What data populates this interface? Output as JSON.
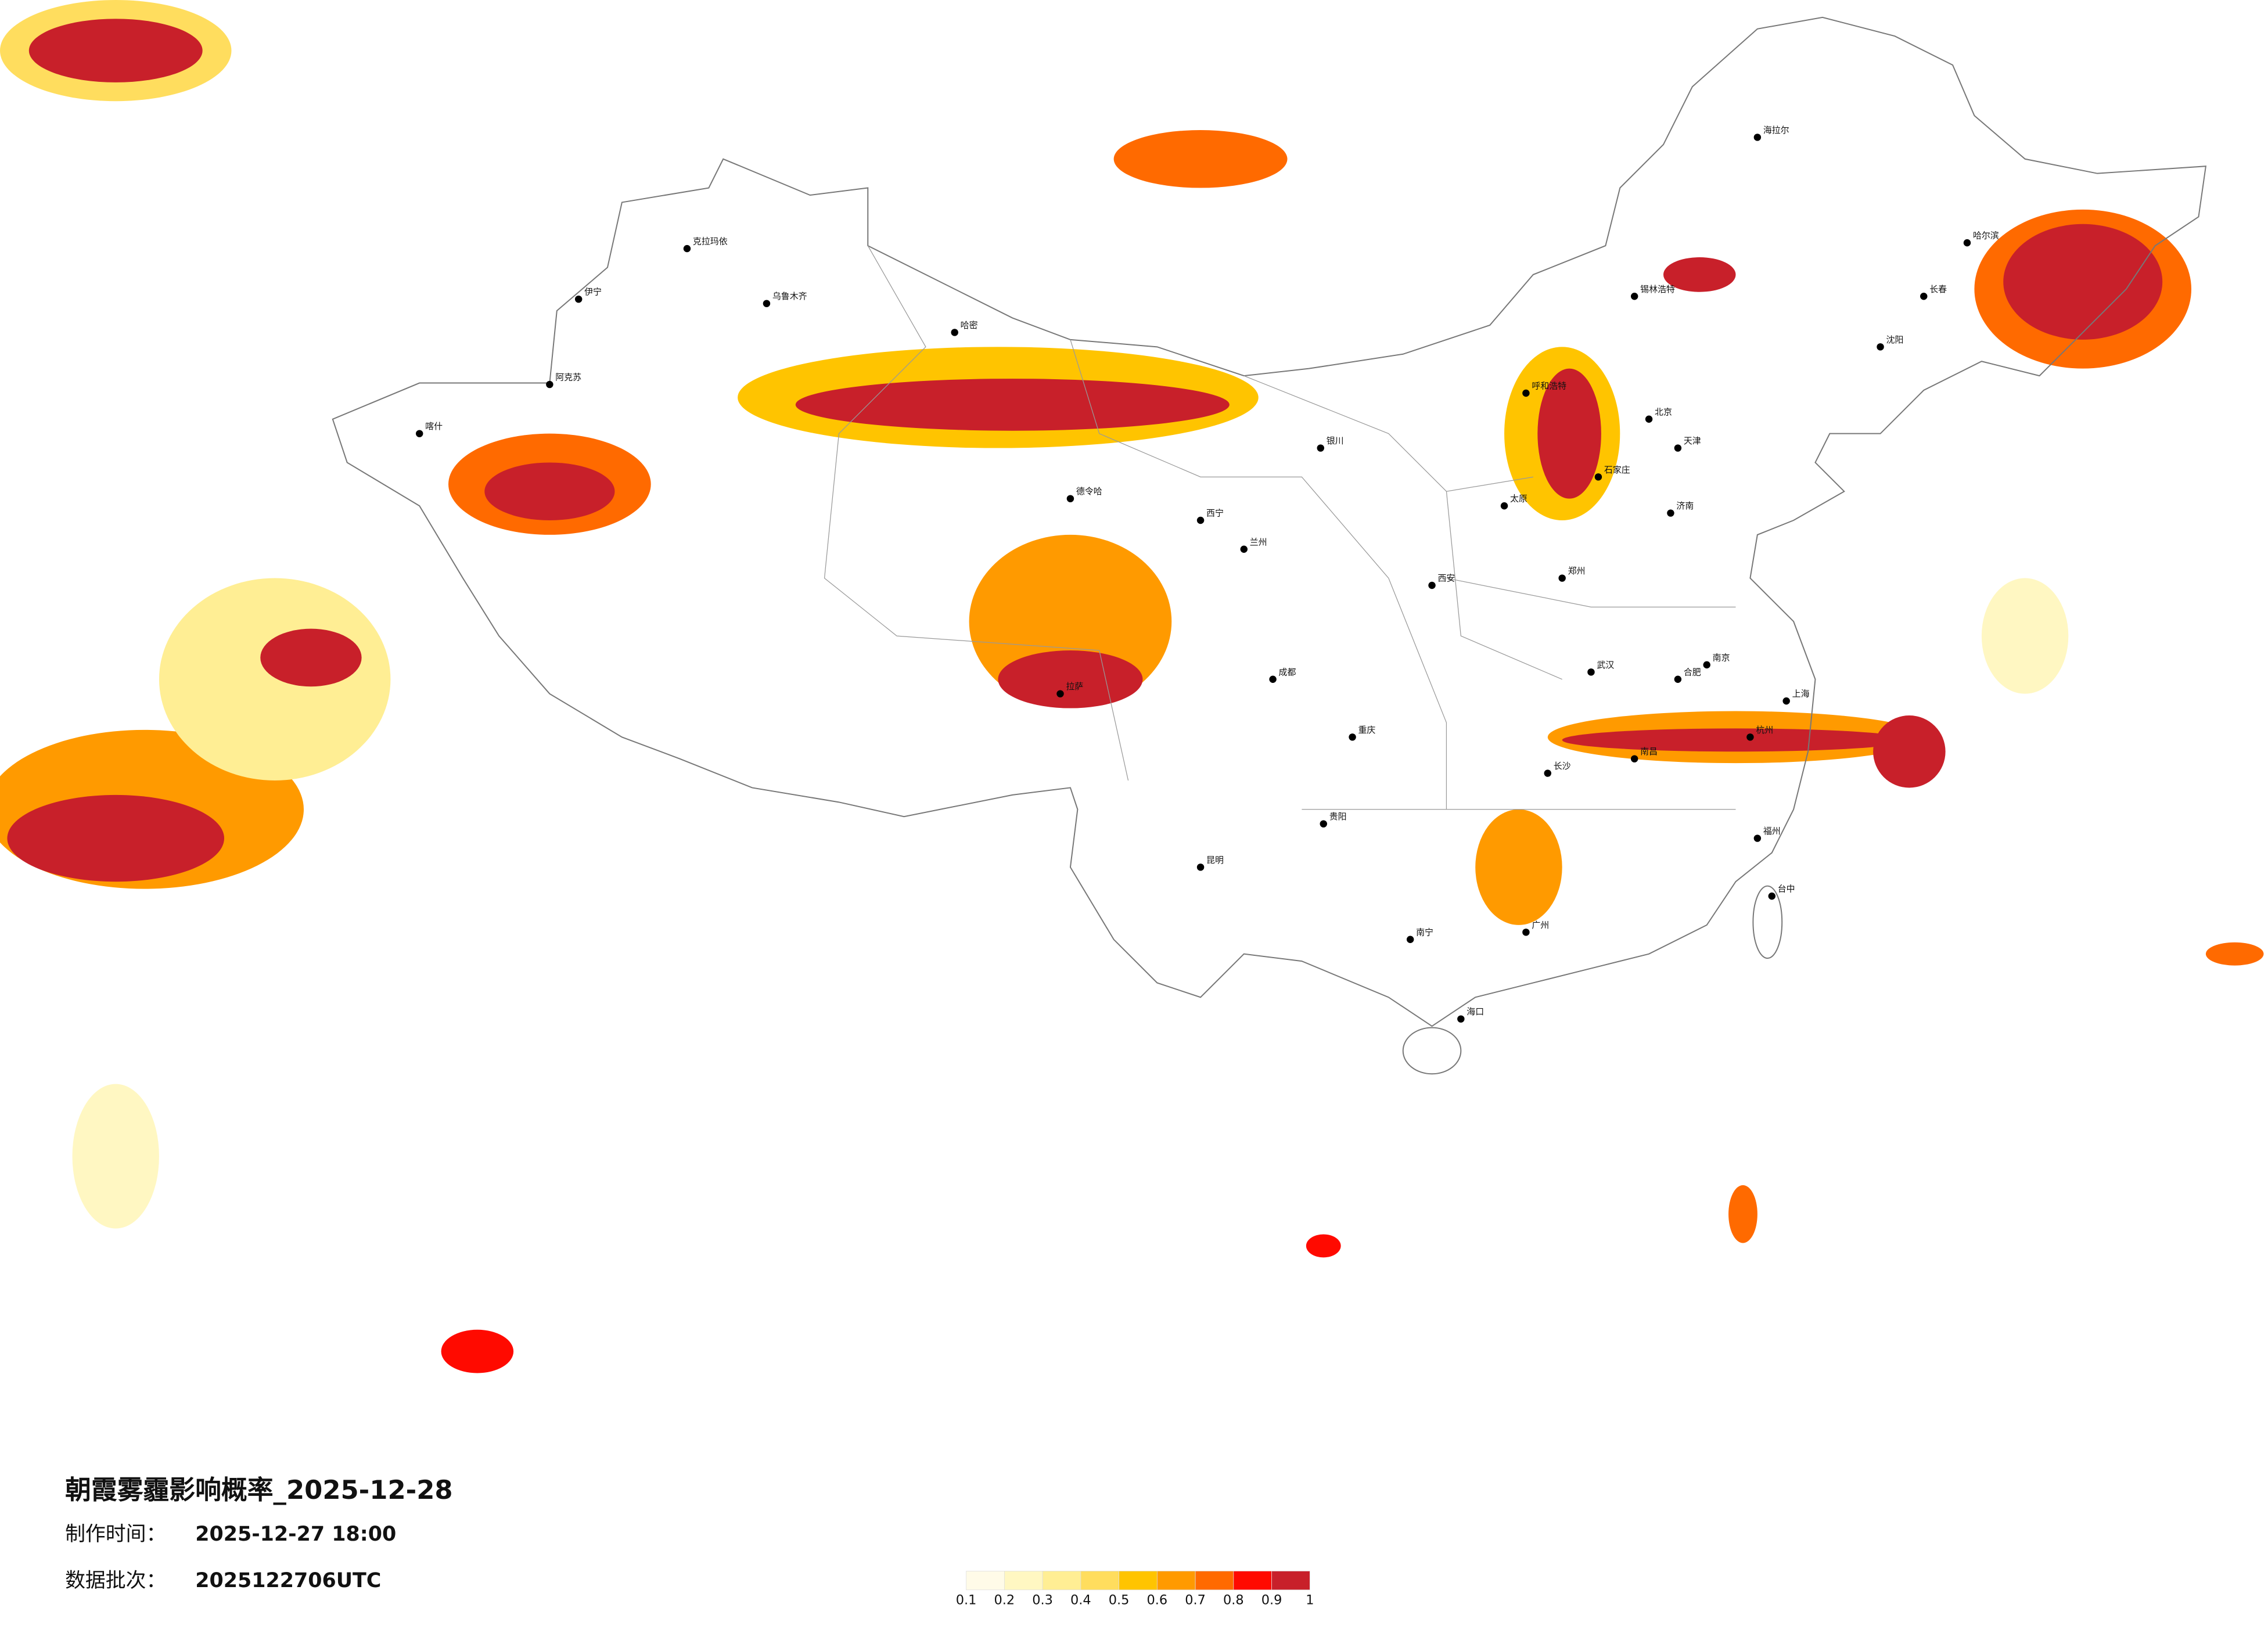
{
  "title": "朝霞雾霾影响概率_2025-12-28",
  "production": {
    "label": "制作时间：",
    "value": "2025-12-27 18:00"
  },
  "batch": {
    "label": "数据批次：",
    "value": "2025122706UTC"
  },
  "legend": {
    "colors": [
      "#fffbe8",
      "#fff7c2",
      "#ffee94",
      "#ffdd5e",
      "#ffc400",
      "#ff9a00",
      "#ff6a00",
      "#ff0a00",
      "#c8202a"
    ],
    "labels": [
      0.1,
      0.2,
      0.3,
      0.4,
      0.5,
      0.6,
      0.7,
      0.8,
      0.9,
      1
    ]
  },
  "cities": [
    "克拉玛依",
    "伊宁",
    "乌鲁木齐",
    "哈密",
    "阿克苏",
    "喀什",
    "德令哈",
    "拉萨",
    "西宁",
    "兰州",
    "银川",
    "呼和浩特",
    "北京",
    "天津",
    "石家庄",
    "太原",
    "济南",
    "郑州",
    "西安",
    "成都",
    "重庆",
    "武汉",
    "南京",
    "上海",
    "杭州",
    "合肥",
    "长沙",
    "南昌",
    "福州",
    "广州",
    "南宁",
    "昆明",
    "贵阳",
    "海口",
    "台中",
    "哈尔滨",
    "长春",
    "沈阳",
    "锡林浩特",
    "海拉尔"
  ]
}
